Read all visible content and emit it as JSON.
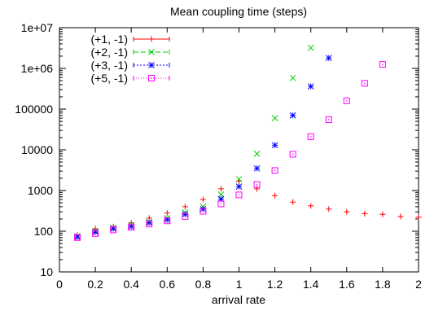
{
  "chart_data": {
    "type": "scatter",
    "title": "Mean coupling time (steps)",
    "xlabel": "arrival rate",
    "ylabel": "",
    "xlim": [
      0,
      2
    ],
    "ylim": [
      10,
      10000000
    ],
    "yscale": "log",
    "grid": false,
    "legend_position": "top-left",
    "x_ticks": [
      0,
      0.2,
      0.4,
      0.6,
      0.8,
      1,
      1.2,
      1.4,
      1.6,
      1.8,
      2
    ],
    "x_tick_labels": [
      "0",
      "0.2",
      "0.4",
      "0.6",
      "0.8",
      "1",
      "1.2",
      "1.4",
      "1.6",
      "1.8",
      "2"
    ],
    "y_ticks": [
      10,
      100,
      1000,
      10000,
      100000,
      1000000,
      10000000
    ],
    "y_tick_labels": [
      "10",
      "100",
      "1000",
      "10000",
      "100000",
      "1e+06",
      "1e+07"
    ],
    "series": [
      {
        "name": "(+1, -1)",
        "color": "#ff0000",
        "marker": "plus",
        "x": [
          0.1,
          0.2,
          0.3,
          0.4,
          0.5,
          0.6,
          0.7,
          0.8,
          0.9,
          1.0,
          1.1,
          1.2,
          1.3,
          1.4,
          1.5,
          1.6,
          1.7,
          1.8,
          1.9,
          2.0
        ],
        "y": [
          80,
          115,
          130,
          160,
          210,
          280,
          400,
          600,
          1100,
          1700,
          1100,
          750,
          520,
          420,
          350,
          300,
          270,
          260,
          230,
          220
        ]
      },
      {
        "name": "(+2, -1)",
        "color": "#00cc00",
        "marker": "cross",
        "x": [
          0.1,
          0.2,
          0.3,
          0.4,
          0.5,
          0.6,
          0.7,
          0.8,
          0.9,
          1.0,
          1.1,
          1.2,
          1.3,
          1.4
        ],
        "y": [
          75,
          100,
          120,
          140,
          170,
          210,
          290,
          400,
          800,
          1900,
          8000,
          60000,
          580000,
          3200000
        ]
      },
      {
        "name": "(+3, -1)",
        "color": "#0000ff",
        "marker": "star",
        "x": [
          0.1,
          0.2,
          0.3,
          0.4,
          0.5,
          0.6,
          0.7,
          0.8,
          0.9,
          1.0,
          1.1,
          1.2,
          1.3,
          1.4,
          1.5
        ],
        "y": [
          72,
          95,
          115,
          130,
          160,
          190,
          260,
          350,
          620,
          1250,
          3500,
          13000,
          70000,
          360000,
          1800000
        ]
      },
      {
        "name": "(+5, -1)",
        "color": "#ff00ff",
        "marker": "square",
        "x": [
          0.1,
          0.2,
          0.3,
          0.4,
          0.5,
          0.6,
          0.7,
          0.8,
          0.9,
          1.0,
          1.1,
          1.2,
          1.3,
          1.4,
          1.5,
          1.6,
          1.7,
          1.8
        ],
        "y": [
          70,
          88,
          108,
          125,
          150,
          180,
          230,
          310,
          470,
          780,
          1400,
          3100,
          7800,
          21000,
          55000,
          160000,
          430000,
          1250000
        ]
      }
    ]
  }
}
